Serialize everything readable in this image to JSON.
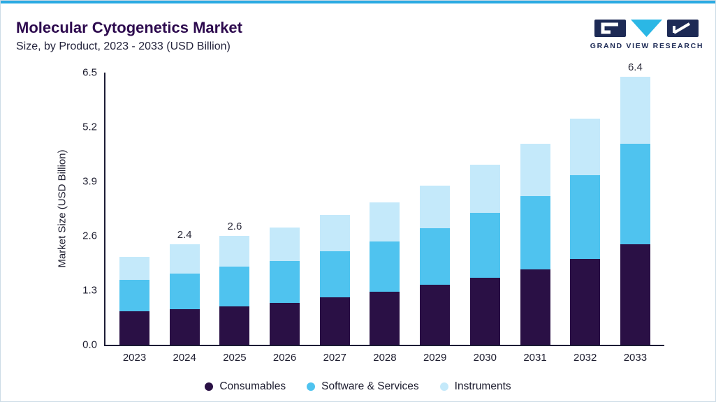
{
  "header": {
    "title": "Molecular Cytogenetics Market",
    "subtitle": "Size, by Product, 2023 - 2033 (USD Billion)",
    "logo_text": "GRAND VIEW RESEARCH"
  },
  "colors": {
    "accent_line": "#2baae2",
    "card_border": "#ccdbe6",
    "title": "#2d0a4e",
    "axis": "#1c1c35",
    "logo_navy": "#1d2a55",
    "logo_cyan": "#2bb7e5"
  },
  "chart_data": {
    "type": "bar",
    "stacked": true,
    "title": "Molecular Cytogenetics Market Size, by Product, 2023 - 2033 (USD Billion)",
    "xlabel": "",
    "ylabel": "Market Size (USD Billion)",
    "ylim": [
      0,
      6.5
    ],
    "yticks": [
      "0.0",
      "1.3",
      "2.6",
      "3.9",
      "5.2",
      "6.5"
    ],
    "grid": false,
    "legend_position": "bottom",
    "categories": [
      "2023",
      "2024",
      "2025",
      "2026",
      "2027",
      "2028",
      "2029",
      "2030",
      "2031",
      "2032",
      "2033"
    ],
    "series": [
      {
        "name": "Consumables",
        "color": "#2a1045",
        "values": [
          0.8,
          0.85,
          0.92,
          1.0,
          1.13,
          1.27,
          1.43,
          1.6,
          1.8,
          2.05,
          2.4
        ]
      },
      {
        "name": "Software & Services",
        "color": "#4fc3ef",
        "values": [
          0.75,
          0.85,
          0.95,
          1.0,
          1.1,
          1.2,
          1.35,
          1.55,
          1.75,
          2.0,
          2.4
        ]
      },
      {
        "name": "Instruments",
        "color": "#c4e9fa",
        "values": [
          0.55,
          0.7,
          0.73,
          0.8,
          0.87,
          0.93,
          1.02,
          1.15,
          1.25,
          1.35,
          1.6
        ]
      }
    ],
    "totals": [
      2.1,
      2.4,
      2.6,
      2.8,
      3.1,
      3.4,
      3.8,
      4.3,
      4.8,
      5.4,
      6.4
    ],
    "totals_labels": [
      null,
      "2.4",
      "2.6",
      null,
      null,
      null,
      null,
      null,
      null,
      null,
      "6.4"
    ]
  }
}
